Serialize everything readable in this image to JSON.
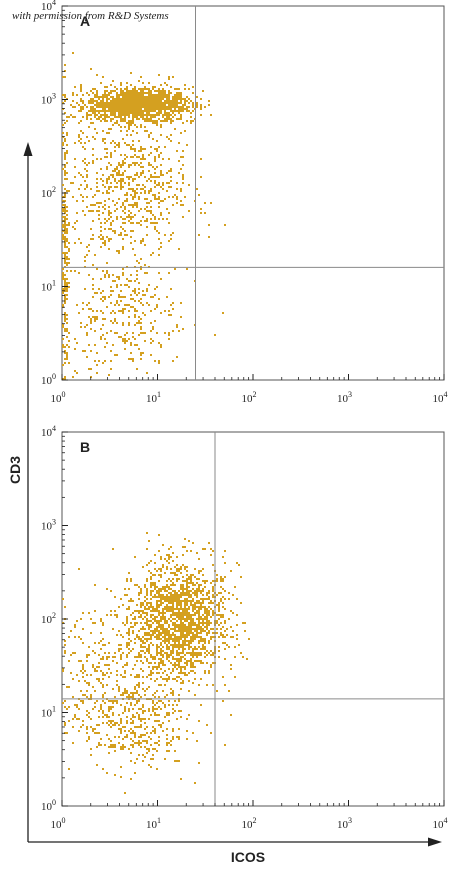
{
  "watermark": "with permission from R&D Systems",
  "x_axis_title": "ICOS",
  "y_axis_title": "CD3",
  "colors": {
    "dots": "#d4a020",
    "frame": "#555555",
    "quadrant": "#8a8a8a",
    "axis": "#222222"
  },
  "chart_data": [
    {
      "type": "scatter",
      "panel_label": "A",
      "x_scale": "log",
      "y_scale": "log",
      "xlim": [
        1,
        10000
      ],
      "ylim": [
        1,
        10000
      ],
      "x_ticks": [
        "10",
        "10",
        "10",
        "10",
        "10"
      ],
      "x_tick_exponents": [
        "0",
        "1",
        "2",
        "3",
        "4"
      ],
      "y_ticks": [
        "10",
        "10",
        "10",
        "10",
        "10"
      ],
      "y_tick_exponents": [
        "0",
        "1",
        "2",
        "3",
        "4"
      ],
      "quadrant_x": 25,
      "quadrant_y": 16,
      "populations": [
        {
          "center_x": 6,
          "center_y": 900,
          "spread_x": 0.28,
          "spread_y": 0.09,
          "count": 1500
        },
        {
          "center_x": 5,
          "center_y": 120,
          "spread_x": 0.3,
          "spread_y": 0.4,
          "count": 700
        },
        {
          "center_x": 4,
          "center_y": 5,
          "spread_x": 0.3,
          "spread_y": 0.35,
          "count": 350
        },
        {
          "center_x": 1.05,
          "center_y": 30,
          "spread_x": 0.02,
          "spread_y": 0.8,
          "count": 220
        }
      ]
    },
    {
      "type": "scatter",
      "panel_label": "B",
      "x_scale": "log",
      "y_scale": "log",
      "xlim": [
        1,
        10000
      ],
      "ylim": [
        1,
        10000
      ],
      "x_ticks": [
        "10",
        "10",
        "10",
        "10",
        "10"
      ],
      "x_tick_exponents": [
        "0",
        "1",
        "2",
        "3",
        "4"
      ],
      "y_ticks": [
        "10",
        "10",
        "10",
        "10",
        "10"
      ],
      "y_tick_exponents": [
        "0",
        "1",
        "2",
        "3",
        "4"
      ],
      "quadrant_x": 40,
      "quadrant_y": 14,
      "populations": [
        {
          "center_x": 16,
          "center_y": 100,
          "spread_x": 0.25,
          "spread_y": 0.3,
          "count": 1800
        },
        {
          "center_x": 5,
          "center_y": 8,
          "spread_x": 0.3,
          "spread_y": 0.25,
          "count": 450
        },
        {
          "center_x": 3,
          "center_y": 40,
          "spread_x": 0.3,
          "spread_y": 0.3,
          "count": 250
        }
      ]
    }
  ]
}
